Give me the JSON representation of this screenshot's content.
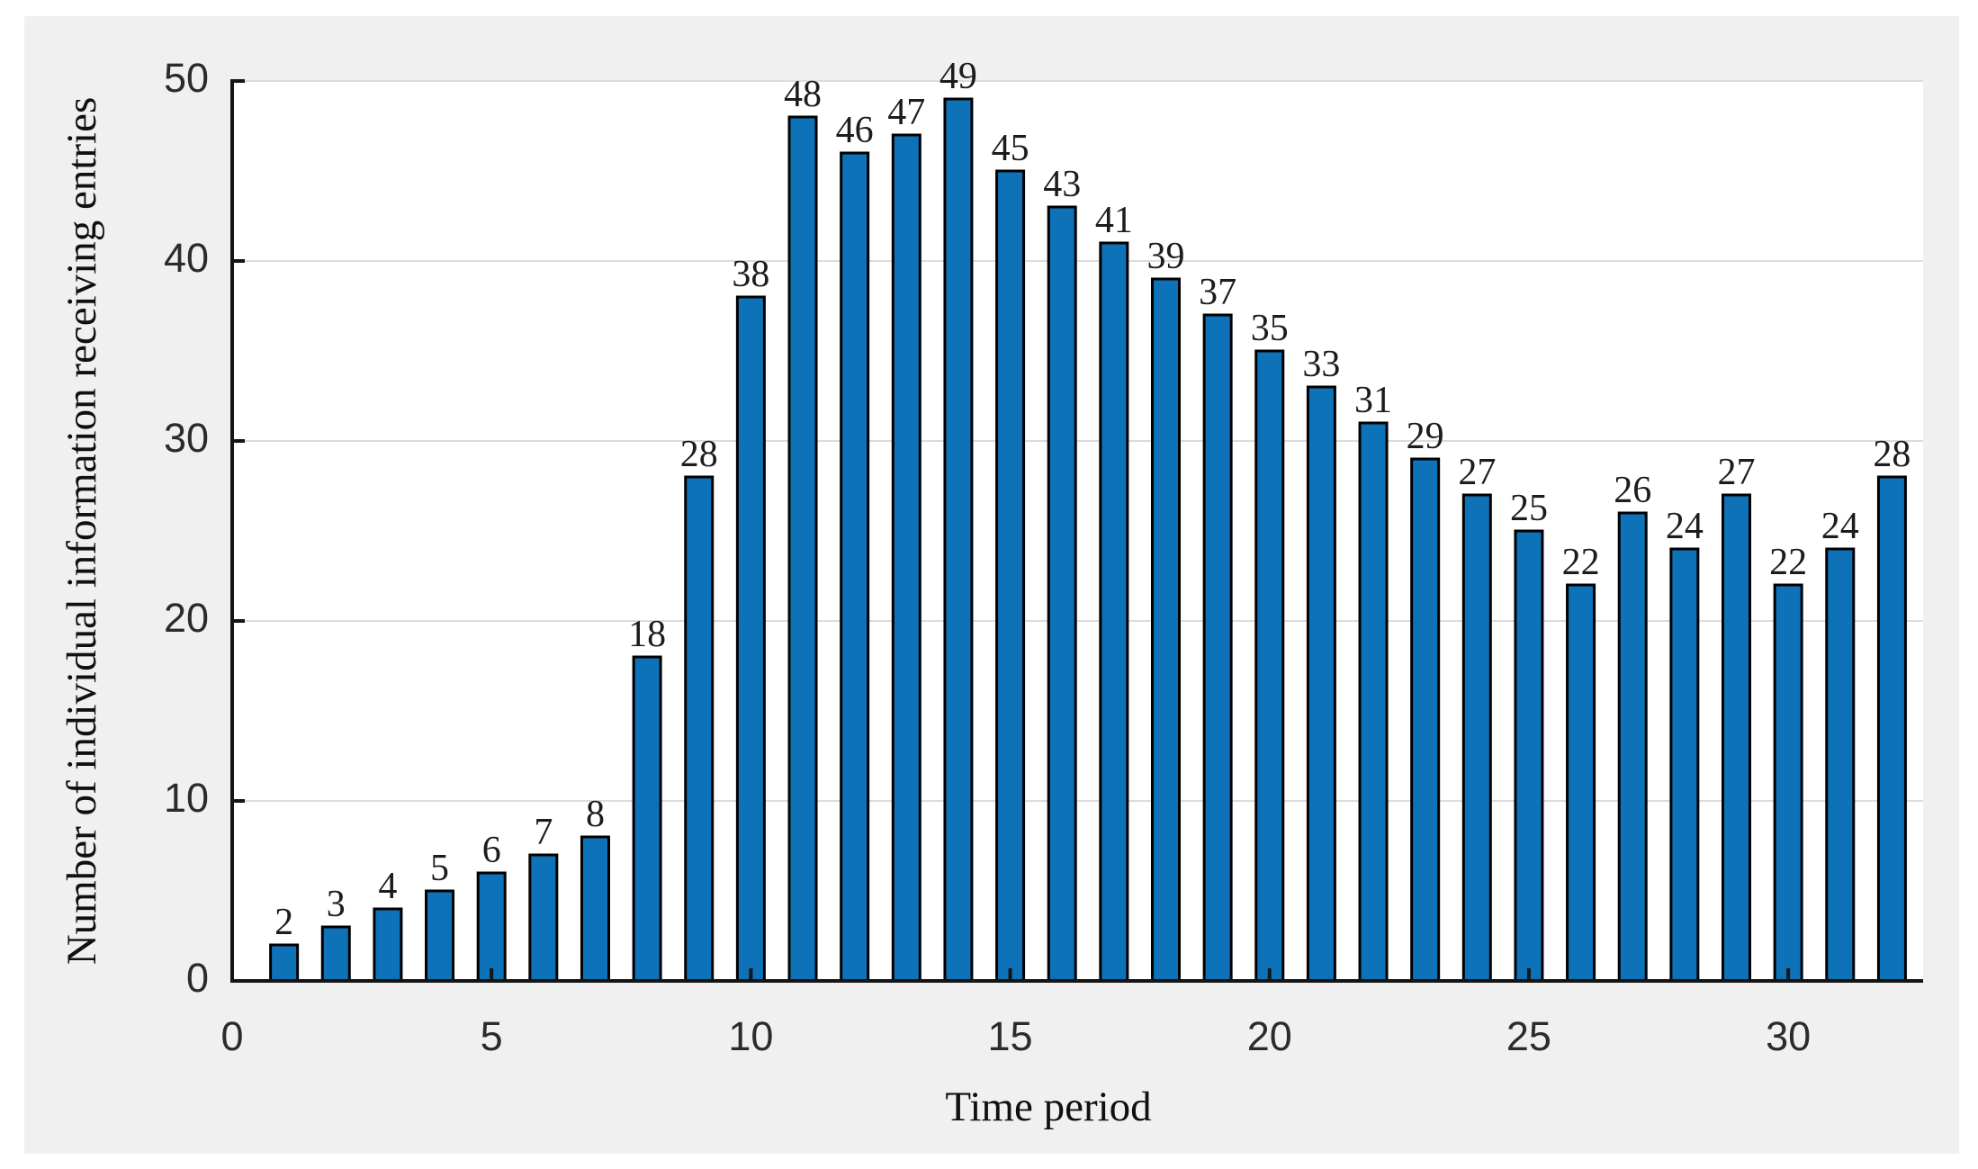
{
  "figure": {
    "background_color": "#f0f0f0",
    "plot_background_color": "#ffffff",
    "grid_color": "#dcdcdc",
    "axis_line_color": "#151515",
    "tick_label_color": "#2b2b2b",
    "value_label_color": "#1c1c1c"
  },
  "chart_data": {
    "type": "bar",
    "title": "",
    "xlabel": "Time period",
    "ylabel": "Number of individual information receiving entries",
    "x": [
      1,
      2,
      3,
      4,
      5,
      6,
      7,
      8,
      9,
      10,
      11,
      12,
      13,
      14,
      15,
      16,
      17,
      18,
      19,
      20,
      21,
      22,
      23,
      24,
      25,
      26,
      27,
      28,
      29,
      30,
      31,
      32
    ],
    "values": [
      2,
      3,
      4,
      5,
      6,
      7,
      8,
      18,
      28,
      38,
      48,
      46,
      47,
      49,
      45,
      43,
      41,
      39,
      37,
      35,
      33,
      31,
      29,
      27,
      25,
      22,
      26,
      24,
      27,
      22,
      24,
      28
    ],
    "bar_value_labels": [
      "2",
      "3",
      "4",
      "5",
      "6",
      "7",
      "8",
      "18",
      "28",
      "38",
      "48",
      "46",
      "47",
      "49",
      "45",
      "43",
      "41",
      "39",
      "37",
      "35",
      "33",
      "31",
      "29",
      "27",
      "25",
      "22",
      "26",
      "24",
      "27",
      "22",
      "24",
      "28"
    ],
    "xticks": [
      0,
      5,
      10,
      15,
      20,
      25,
      30
    ],
    "yticks": [
      0,
      10,
      20,
      30,
      40,
      50
    ],
    "xlim": [
      0,
      32.6
    ],
    "ylim": [
      0,
      50
    ],
    "grid": "horizontal",
    "legend_position": "none",
    "bar_color": "#0e72b9",
    "bar_edge_color": "#000000"
  }
}
